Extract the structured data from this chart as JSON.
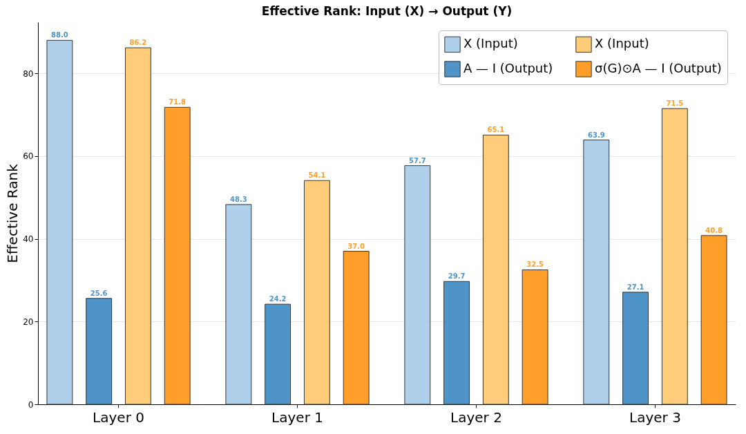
{
  "chart_data": {
    "type": "bar",
    "title": "Effective Rank: Input (X) → Output (Y)",
    "ylabel": "Effective Rank",
    "categories": [
      "Layer 0",
      "Layer 1",
      "Layer 2",
      "Layer 3"
    ],
    "series": [
      {
        "name": "X (Input)",
        "color": "#aed0ea",
        "values": [
          88.0,
          48.3,
          57.7,
          63.9
        ],
        "value_labels": [
          "88.0",
          "48.3",
          "57.7",
          "63.9"
        ]
      },
      {
        "name": "A — I (Output)",
        "color": "#4e94c8",
        "values": [
          25.6,
          24.2,
          29.7,
          27.1
        ],
        "value_labels": [
          "25.6",
          "24.2",
          "29.7",
          "27.1"
        ]
      },
      {
        "name": "X (Input)",
        "color": "#ffcc7a",
        "values": [
          86.2,
          54.1,
          65.1,
          71.5
        ],
        "value_labels": [
          "86.2",
          "54.1",
          "65.1",
          "71.5"
        ]
      },
      {
        "name": "σ(G)⊙A — I (Output)",
        "color": "#ff9f2a",
        "values": [
          71.8,
          37.0,
          32.5,
          40.8
        ],
        "value_labels": [
          "71.8",
          "37.0",
          "32.5",
          "40.8"
        ]
      }
    ],
    "ylim": [
      0,
      92.4
    ],
    "yticks": [
      0,
      20,
      40,
      60,
      80
    ],
    "grid": "y",
    "legend": "top right"
  }
}
